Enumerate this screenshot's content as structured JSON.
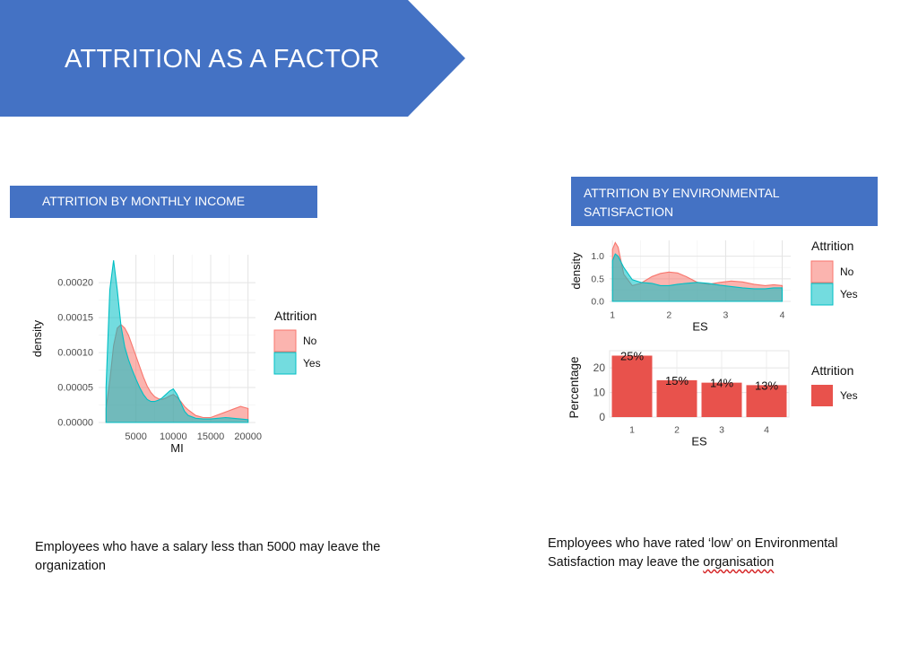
{
  "slide": {
    "title": "ATTRITION AS A FACTOR",
    "colors": {
      "banner": "#4472c4",
      "no": "#f8766d",
      "yes": "#00bfc4",
      "bar": "#e8524c"
    }
  },
  "sections": {
    "left": {
      "header": "ATTRITION BY MONTHLY INCOME",
      "caption": " Employees who have a salary less than 5000 may leave the organization"
    },
    "right": {
      "header_line1": "ATTRITION  BY ENVIRONMENTAL",
      "header_line2": "SATISFACTION",
      "caption_before": "Employees who have rated ‘low’ on Environmental Satisfaction may leave the ",
      "caption_flagged": "organisation"
    }
  },
  "chart_data": [
    {
      "type": "area",
      "xlabel": "MI",
      "ylabel": "density",
      "xlim": [
        0,
        21000
      ],
      "ylim": [
        0,
        0.00024
      ],
      "x_ticks": [
        5000,
        10000,
        15000,
        20000
      ],
      "y_ticks": [
        0,
        5e-05,
        0.0001,
        0.00015,
        0.0002
      ],
      "y_tick_labels": [
        "0.00000",
        "0.00005",
        "0.00010",
        "0.00015",
        "0.00020"
      ],
      "legend_title": "Attrition",
      "legend_position": "right",
      "grid": true,
      "series": [
        {
          "name": "No",
          "x": [
            1000,
            1500,
            2000,
            2500,
            3000,
            3500,
            4000,
            4500,
            5000,
            5500,
            6000,
            6500,
            7000,
            7500,
            8000,
            8500,
            9000,
            9500,
            10000,
            10500,
            11000,
            11500,
            12000,
            13000,
            14000,
            15000,
            16000,
            17000,
            18000,
            19000,
            20000
          ],
          "y": [
            2e-05,
            6e-05,
            0.00011,
            0.000135,
            0.00014,
            0.000135,
            0.000125,
            0.00011,
            9.5e-05,
            8e-05,
            6.5e-05,
            5.2e-05,
            4.3e-05,
            3.7e-05,
            3.4e-05,
            3.3e-05,
            3.5e-05,
            3.8e-05,
            4e-05,
            3.6e-05,
            3e-05,
            2.3e-05,
            1.8e-05,
            1e-05,
            7e-06,
            7e-06,
            1.1e-05,
            1.5e-05,
            1.9e-05,
            2.3e-05,
            2e-05
          ]
        },
        {
          "name": "Yes",
          "x": [
            1000,
            1500,
            2000,
            2500,
            3000,
            3500,
            4000,
            4500,
            5000,
            5500,
            6000,
            6500,
            7000,
            7500,
            8000,
            8500,
            9000,
            9500,
            10000,
            10500,
            11000,
            11500,
            12000,
            13000,
            14000,
            15000,
            16000,
            17000,
            18000,
            19000,
            20000
          ],
          "y": [
            5e-05,
            0.00019,
            0.000232,
            0.00019,
            0.000138,
            0.000108,
            9e-05,
            7.5e-05,
            6.2e-05,
            5e-05,
            4e-05,
            3.3e-05,
            3e-05,
            3e-05,
            3.2e-05,
            3.5e-05,
            4e-05,
            4.5e-05,
            4.8e-05,
            4e-05,
            2.8e-05,
            1.6e-05,
            1e-05,
            6e-06,
            5e-06,
            5e-06,
            6e-06,
            7e-06,
            6e-06,
            5e-06,
            4e-06
          ]
        }
      ]
    },
    {
      "type": "area",
      "xlabel": "ES",
      "ylabel": "density",
      "xlim": [
        0.95,
        4.15
      ],
      "ylim": [
        0,
        1.35
      ],
      "x_ticks": [
        1,
        2,
        3,
        4
      ],
      "y_ticks": [
        0,
        0.5,
        1
      ],
      "y_tick_labels": [
        "0.0",
        "0.5",
        "1.0"
      ],
      "legend_title": "Attrition",
      "legend_position": "right",
      "grid": true,
      "series": [
        {
          "name": "No",
          "x": [
            1,
            1.05,
            1.1,
            1.2,
            1.35,
            1.5,
            1.7,
            1.85,
            2,
            2.15,
            2.3,
            2.5,
            2.7,
            2.9,
            3.1,
            3.3,
            3.5,
            3.7,
            3.85,
            4
          ],
          "y": [
            1.15,
            1.3,
            1.2,
            0.6,
            0.35,
            0.4,
            0.55,
            0.62,
            0.65,
            0.63,
            0.55,
            0.42,
            0.38,
            0.42,
            0.45,
            0.43,
            0.38,
            0.35,
            0.37,
            0.35
          ]
        },
        {
          "name": "Yes",
          "x": [
            1,
            1.05,
            1.1,
            1.2,
            1.35,
            1.5,
            1.7,
            1.85,
            2,
            2.15,
            2.3,
            2.5,
            2.7,
            2.9,
            3.1,
            3.3,
            3.5,
            3.7,
            3.85,
            4
          ],
          "y": [
            0.9,
            1.05,
            1.0,
            0.75,
            0.48,
            0.42,
            0.4,
            0.35,
            0.35,
            0.38,
            0.4,
            0.42,
            0.4,
            0.36,
            0.33,
            0.3,
            0.28,
            0.28,
            0.3,
            0.3
          ]
        }
      ]
    },
    {
      "type": "bar",
      "xlabel": "ES",
      "ylabel": "Percentage",
      "categories": [
        "1",
        "2",
        "3",
        "4"
      ],
      "values": [
        25,
        15,
        14,
        13
      ],
      "labels": [
        "25%",
        "15%",
        "14%",
        "13%"
      ],
      "ylim": [
        0,
        27
      ],
      "y_ticks": [
        0,
        10,
        20
      ],
      "legend_title": "Attrition",
      "legend_entries": [
        "Yes"
      ],
      "legend_position": "right",
      "grid": true
    }
  ]
}
